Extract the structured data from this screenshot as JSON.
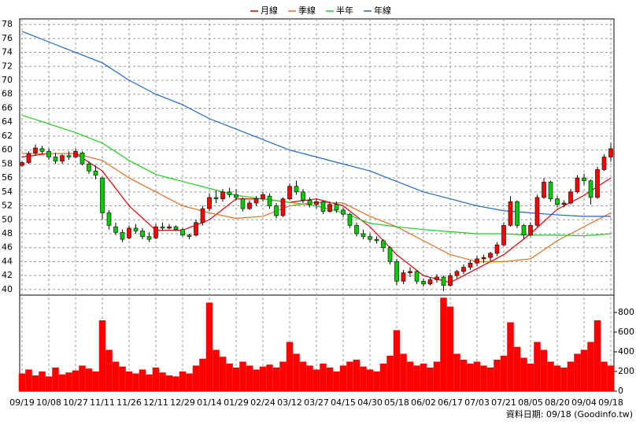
{
  "chart_data": {
    "type": "candlestick",
    "source": "資料日期: 09/18 (Goodinfo.tw)",
    "xlabels": [
      "09/19",
      "10/08",
      "10/27",
      "11/11",
      "11/26",
      "12/11",
      "12/29",
      "01/14",
      "01/29",
      "02/24",
      "03/12",
      "03/27",
      "04/15",
      "04/30",
      "05/18",
      "06/02",
      "06/17",
      "07/03",
      "07/21",
      "08/05",
      "08/20",
      "09/04",
      "09/18"
    ],
    "up_color": "#ff0000",
    "down_color": "#00cc00",
    "volume_color": "#ff0000",
    "ohlc": [
      [
        57.8,
        58.4,
        57.6,
        58.2
      ],
      [
        58.2,
        59.8,
        58,
        59.5
      ],
      [
        59.6,
        60.8,
        59.2,
        60.3
      ],
      [
        60.2,
        60.6,
        59.4,
        59.8
      ],
      [
        59.8,
        60.2,
        58.6,
        59
      ],
      [
        59,
        59.6,
        58,
        58.4
      ],
      [
        58.4,
        59.4,
        58,
        59.2
      ],
      [
        59.2,
        59.8,
        58.6,
        59
      ],
      [
        59,
        60.2,
        58.8,
        59.8
      ],
      [
        59.6,
        59.8,
        57.8,
        58
      ],
      [
        58,
        58.4,
        56.6,
        57
      ],
      [
        57,
        57.8,
        55.8,
        56.4
      ],
      [
        56,
        56.2,
        50,
        51
      ],
      [
        51,
        51.4,
        48.6,
        49.2
      ],
      [
        49,
        49.6,
        47.8,
        48.2
      ],
      [
        48.2,
        48.6,
        46.8,
        47.2
      ],
      [
        47.4,
        49.2,
        47.2,
        48.8
      ],
      [
        48.8,
        49.4,
        48,
        48.4
      ],
      [
        48.4,
        48.8,
        47.2,
        47.6
      ],
      [
        47.6,
        48.2,
        46.8,
        47.2
      ],
      [
        47.4,
        49.4,
        47.2,
        49
      ],
      [
        49,
        49.6,
        48.4,
        48.8
      ],
      [
        48.8,
        49.4,
        48.6,
        49
      ],
      [
        49,
        49.2,
        48.4,
        48.6
      ],
      [
        48.6,
        48.8,
        47.6,
        47.8
      ],
      [
        47.8,
        48,
        47.2,
        47.6
      ],
      [
        47.8,
        50,
        47.6,
        49.6
      ],
      [
        49.6,
        52,
        49.2,
        51.6
      ],
      [
        51.6,
        53.8,
        51.2,
        53.2
      ],
      [
        53.2,
        54.2,
        52.4,
        53
      ],
      [
        53,
        54.4,
        52.6,
        54
      ],
      [
        54,
        54.6,
        53.2,
        53.6
      ],
      [
        53.6,
        54.4,
        52.8,
        53.2
      ],
      [
        53,
        53.2,
        51.2,
        51.6
      ],
      [
        51.6,
        52.8,
        51.4,
        52.4
      ],
      [
        52.4,
        53.4,
        52,
        53
      ],
      [
        53,
        54,
        52.6,
        53.6
      ],
      [
        53.4,
        53.8,
        51.6,
        52
      ],
      [
        52,
        52.4,
        50.2,
        50.6
      ],
      [
        50.6,
        53.2,
        50.4,
        53
      ],
      [
        53,
        55.2,
        52.8,
        54.8
      ],
      [
        54.8,
        55.6,
        53.6,
        54
      ],
      [
        54,
        54.4,
        52.4,
        52.8
      ],
      [
        52.8,
        53.2,
        51.8,
        52.2
      ],
      [
        52.2,
        53,
        51.6,
        52.6
      ],
      [
        52.6,
        52.8,
        50.8,
        51.2
      ],
      [
        51.2,
        52.6,
        51,
        52.2
      ],
      [
        52.2,
        52.6,
        51,
        51.4
      ],
      [
        51.4,
        51.8,
        50.4,
        50.8
      ],
      [
        50.8,
        51,
        48.8,
        49.2
      ],
      [
        49.2,
        49.6,
        47.6,
        48
      ],
      [
        48,
        48.6,
        47.2,
        47.6
      ],
      [
        47.6,
        48,
        46.8,
        47.2
      ],
      [
        47.2,
        47.6,
        46.6,
        47
      ],
      [
        47,
        47.2,
        45.4,
        46
      ],
      [
        46,
        46.2,
        43.6,
        44
      ],
      [
        44,
        44.4,
        40.6,
        41.2
      ],
      [
        41.2,
        42.8,
        40.8,
        42.4
      ],
      [
        42.4,
        43.2,
        41.8,
        42.6
      ],
      [
        42.6,
        42.8,
        40.8,
        41.2
      ],
      [
        41.2,
        41.6,
        40.4,
        40.8
      ],
      [
        40.8,
        41.8,
        40.6,
        41.4
      ],
      [
        41.4,
        42.2,
        41,
        41.8
      ],
      [
        41.8,
        42,
        39.8,
        40.6
      ],
      [
        40.6,
        42.4,
        40.4,
        42
      ],
      [
        42,
        42.8,
        41.6,
        42.6
      ],
      [
        42.6,
        43.6,
        42.2,
        43.2
      ],
      [
        43.2,
        44.2,
        42.8,
        43.8
      ],
      [
        43.8,
        44.8,
        43.4,
        44.4
      ],
      [
        44.4,
        45,
        43.8,
        44.6
      ],
      [
        44.6,
        45.4,
        44,
        45.2
      ],
      [
        45.2,
        46.8,
        44.8,
        46.4
      ],
      [
        46.4,
        49.6,
        46.2,
        49.2
      ],
      [
        49.2,
        53.4,
        49,
        52.6
      ],
      [
        52.6,
        52.8,
        48.8,
        49.2
      ],
      [
        49.2,
        49.4,
        47.2,
        47.8
      ],
      [
        47.8,
        49.6,
        47.6,
        49.2
      ],
      [
        49.2,
        53.6,
        49,
        53.2
      ],
      [
        53.2,
        56,
        53,
        55.4
      ],
      [
        55.4,
        55.6,
        52.6,
        53
      ],
      [
        53,
        53.4,
        51.8,
        52.2
      ],
      [
        52.2,
        52.8,
        51.8,
        52.4
      ],
      [
        52.4,
        54.4,
        52.2,
        54
      ],
      [
        54,
        56.4,
        53.8,
        56
      ],
      [
        56,
        56.6,
        55,
        55.6
      ],
      [
        55.6,
        55.8,
        52.2,
        53.2
      ],
      [
        53.2,
        57.6,
        53,
        57.2
      ],
      [
        57.2,
        59.4,
        57,
        59
      ],
      [
        59,
        61,
        58.4,
        60.2
      ]
    ],
    "volume": [
      180,
      220,
      160,
      200,
      150,
      240,
      170,
      190,
      210,
      260,
      230,
      200,
      720,
      420,
      300,
      250,
      200,
      180,
      220,
      170,
      240,
      190,
      160,
      150,
      200,
      180,
      260,
      330,
      900,
      420,
      350,
      280,
      240,
      300,
      260,
      220,
      250,
      270,
      240,
      300,
      500,
      380,
      300,
      260,
      220,
      280,
      240,
      200,
      260,
      300,
      320,
      250,
      220,
      200,
      280,
      360,
      620,
      380,
      300,
      260,
      280,
      240,
      300,
      950,
      860,
      380,
      320,
      280,
      300,
      260,
      240,
      320,
      360,
      700,
      450,
      340,
      280,
      500,
      420,
      300,
      260,
      240,
      300,
      380,
      420,
      500,
      720,
      300,
      260
    ],
    "ylim": [
      39.2,
      78.8
    ],
    "yticks": [
      40,
      42,
      44,
      46,
      48,
      50,
      52,
      54,
      56,
      58,
      60,
      62,
      64,
      66,
      68,
      70,
      72,
      74,
      76,
      78
    ],
    "y2lim": [
      0,
      976
    ],
    "y2ticks": [
      0,
      200,
      400,
      600,
      800
    ],
    "grid": true,
    "series": [
      {
        "name": "月線",
        "color": "#dd0000",
        "x": [
          0,
          4,
          8,
          12,
          16,
          20,
          24,
          28,
          32,
          36,
          40,
          44,
          48,
          52,
          56,
          60,
          64,
          68,
          72,
          76,
          80,
          84,
          88
        ],
        "values": [
          59,
          59.5,
          59.5,
          57,
          52,
          48.5,
          48.5,
          50,
          53,
          53,
          52.5,
          53,
          52,
          49,
          45,
          42,
          41,
          43,
          45,
          48,
          51.5,
          53.5,
          56
        ]
      },
      {
        "name": "季線",
        "color": "#e07020",
        "x": [
          0,
          8,
          12,
          16,
          20,
          24,
          28,
          32,
          36,
          40,
          44,
          48,
          52,
          56,
          60,
          64,
          68,
          72,
          76,
          80,
          84,
          88
        ],
        "values": [
          59.5,
          59.5,
          58.5,
          56,
          54,
          52,
          51,
          50.2,
          50.5,
          52,
          52.5,
          52.4,
          50.5,
          49,
          47,
          45,
          44,
          44,
          44.4,
          47,
          49,
          51
        ]
      },
      {
        "name": "半年",
        "color": "#22cc22",
        "x": [
          0,
          8,
          12,
          16,
          20,
          24,
          28,
          32,
          36,
          40,
          44,
          48,
          52,
          56,
          60,
          64,
          68,
          72,
          76,
          80,
          84,
          88
        ],
        "values": [
          65,
          62.5,
          61,
          58.5,
          56.5,
          55.5,
          54.5,
          53.5,
          53,
          52.5,
          52,
          51,
          49.5,
          49,
          48.6,
          48.3,
          48,
          48,
          47.8,
          47.8,
          47.7,
          48
        ]
      },
      {
        "name": "年線",
        "color": "#2266cc",
        "x": [
          0,
          4,
          8,
          12,
          16,
          20,
          24,
          28,
          32,
          36,
          40,
          44,
          48,
          52,
          56,
          60,
          64,
          68,
          72,
          76,
          80,
          84,
          88
        ],
        "values": [
          77,
          75.5,
          74,
          72.5,
          70,
          68,
          66.5,
          64.5,
          63,
          61.5,
          60,
          59,
          58,
          57,
          55.5,
          54,
          53,
          52,
          51.3,
          51,
          50.7,
          50.5,
          50.5
        ]
      }
    ]
  }
}
